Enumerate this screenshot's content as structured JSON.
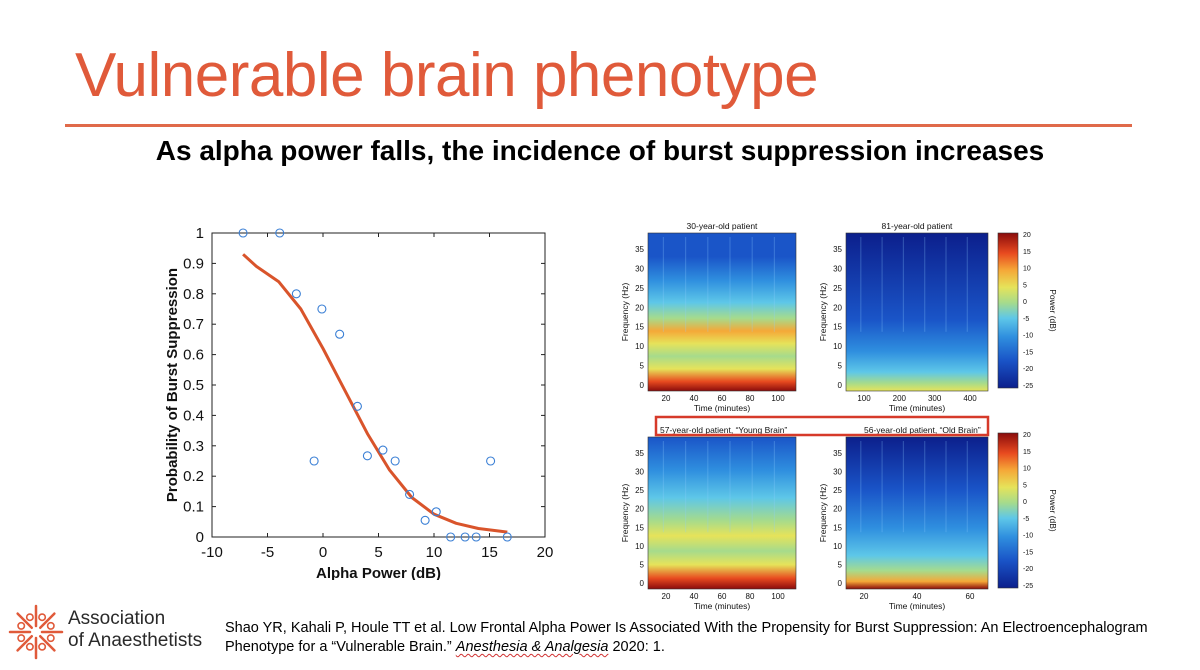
{
  "slide": {
    "title": "Vulnerable brain phenotype",
    "subtitle": "As alpha power falls, the incidence of burst suppression increases",
    "accent_color": "#e05a3a"
  },
  "logo": {
    "icon": "asterisk-flower-icon",
    "line1": "Association",
    "line2": "of Anaesthetists"
  },
  "citation": {
    "line1": "Shao YR, Kahali P, Houle TT et al. Low Frontal Alpha Power Is Associated With the Propensity for Burst Suppression: An Electroencephalogram",
    "line2_prefix": "Phenotype for a “Vulnerable Brain.” ",
    "journal": "Anesthesia & Analgesia",
    "line2_suffix": " 2020: 1."
  },
  "chart_data": [
    {
      "type": "scatter",
      "xlabel": "Alpha Power (dB)",
      "ylabel": "Probability of Burst Suppression",
      "xlim": [
        -10,
        20
      ],
      "ylim": [
        0,
        1
      ],
      "xticks": [
        -10,
        -5,
        0,
        5,
        10,
        15,
        20
      ],
      "yticks": [
        0,
        0.1,
        0.2,
        0.3,
        0.4,
        0.5,
        0.6,
        0.7,
        0.8,
        0.9,
        1
      ],
      "grid": false,
      "points": [
        {
          "x": -7.2,
          "y": 1.0
        },
        {
          "x": -3.9,
          "y": 1.0
        },
        {
          "x": -2.4,
          "y": 0.8
        },
        {
          "x": -0.8,
          "y": 0.25
        },
        {
          "x": -0.1,
          "y": 0.75
        },
        {
          "x": 1.5,
          "y": 0.667
        },
        {
          "x": 3.1,
          "y": 0.43
        },
        {
          "x": 4.0,
          "y": 0.267
        },
        {
          "x": 5.4,
          "y": 0.286
        },
        {
          "x": 6.5,
          "y": 0.25
        },
        {
          "x": 7.8,
          "y": 0.14
        },
        {
          "x": 9.2,
          "y": 0.055
        },
        {
          "x": 10.2,
          "y": 0.083
        },
        {
          "x": 11.5,
          "y": 0.0
        },
        {
          "x": 12.8,
          "y": 0.0
        },
        {
          "x": 13.8,
          "y": 0.0
        },
        {
          "x": 15.1,
          "y": 0.25
        },
        {
          "x": 16.6,
          "y": 0.0
        }
      ],
      "fit_line": {
        "color": "#d9542b",
        "points": [
          {
            "x": -7.2,
            "y": 0.93
          },
          {
            "x": -6.0,
            "y": 0.89
          },
          {
            "x": -4.0,
            "y": 0.84
          },
          {
            "x": -2.0,
            "y": 0.75
          },
          {
            "x": 0.0,
            "y": 0.62
          },
          {
            "x": 2.0,
            "y": 0.48
          },
          {
            "x": 4.0,
            "y": 0.34
          },
          {
            "x": 6.0,
            "y": 0.22
          },
          {
            "x": 8.0,
            "y": 0.13
          },
          {
            "x": 10.0,
            "y": 0.075
          },
          {
            "x": 12.0,
            "y": 0.045
          },
          {
            "x": 14.0,
            "y": 0.028
          },
          {
            "x": 16.0,
            "y": 0.019
          },
          {
            "x": 16.6,
            "y": 0.016
          }
        ]
      },
      "marker_color": "#3a7fd5"
    },
    {
      "type": "heatmap",
      "panels": [
        {
          "title": "30-year-old patient",
          "xlabel": "Time (minutes)",
          "ylabel": "Frequency (Hz)",
          "xticks": [
            "20",
            "40",
            "60",
            "80",
            "100"
          ],
          "yticks": [
            "0",
            "5",
            "10",
            "15",
            "20",
            "25",
            "30",
            "35"
          ],
          "profile": "young"
        },
        {
          "title": "81-year-old patient",
          "xlabel": "Time (minutes)",
          "ylabel": "Frequency (Hz)",
          "xticks": [
            "100",
            "200",
            "300",
            "400"
          ],
          "yticks": [
            "0",
            "5",
            "10",
            "15",
            "20",
            "25",
            "30",
            "35"
          ],
          "profile": "old"
        },
        {
          "title": "57-year-old patient, “Young Brain”",
          "xlabel": "Time (minutes)",
          "ylabel": "Frequency (Hz)",
          "xticks": [
            "20",
            "40",
            "60",
            "80",
            "100"
          ],
          "yticks": [
            "0",
            "5",
            "10",
            "15",
            "20",
            "25",
            "30",
            "35"
          ],
          "profile": "mid-young"
        },
        {
          "title": "56-year-old patient, “Old Brain”",
          "xlabel": "Time (minutes)",
          "ylabel": "Frequency (Hz)",
          "xticks": [
            "20",
            "40",
            "60"
          ],
          "yticks": [
            "0",
            "5",
            "10",
            "15",
            "20",
            "25",
            "30",
            "35"
          ],
          "profile": "mid-old"
        }
      ],
      "colorbar": {
        "label": "Power (dB)",
        "ticks": [
          "20",
          "15",
          "10",
          "5",
          "0",
          "-5",
          "-10",
          "-15",
          "-20",
          "-25"
        ]
      },
      "highlight_color": "#d63a2a"
    }
  ]
}
